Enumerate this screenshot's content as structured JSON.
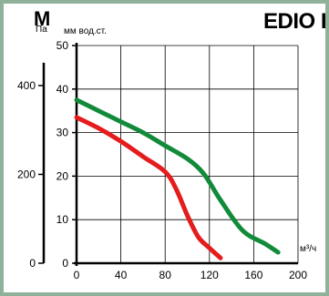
{
  "header": {
    "model_letter": "M",
    "model_title": "EDIO I",
    "unit_pa": "Па",
    "unit_mm": "мм вод.ст."
  },
  "colors": {
    "frame": "#8fb19a",
    "grid": "#000000",
    "series_red": "#e51c1c",
    "series_green": "#118a3a"
  },
  "chart_data": {
    "type": "line",
    "xlabel": "м³/ч",
    "ylabel": "мм вод.ст.",
    "ylabel_secondary": "Па",
    "xlim": [
      0,
      200
    ],
    "ylim": [
      0,
      50
    ],
    "xticks": [
      "0",
      "40",
      "80",
      "120",
      "160",
      "200"
    ],
    "yticks": [
      "0",
      "10",
      "20",
      "30",
      "40",
      "50"
    ],
    "secondary_ylim": [
      0,
      490
    ],
    "secondary_yticks": [
      "0",
      "200",
      "400"
    ],
    "secondary_ytick_values": [
      0,
      200,
      400
    ],
    "grid": true,
    "series": [
      {
        "color": "#118a3a",
        "x": [
          0,
          20,
          40,
          60,
          80,
          100,
          115,
          130,
          150,
          170,
          182
        ],
        "y": [
          37.5,
          35,
          32.5,
          30,
          27,
          24,
          20.5,
          14.5,
          7.5,
          4.5,
          2.5
        ]
      },
      {
        "color": "#e51c1c",
        "x": [
          0,
          20,
          40,
          60,
          80,
          90,
          100,
          110,
          120,
          130
        ],
        "y": [
          33.5,
          31,
          28,
          24.5,
          21,
          17,
          11,
          6,
          3.5,
          1.2
        ]
      }
    ]
  }
}
